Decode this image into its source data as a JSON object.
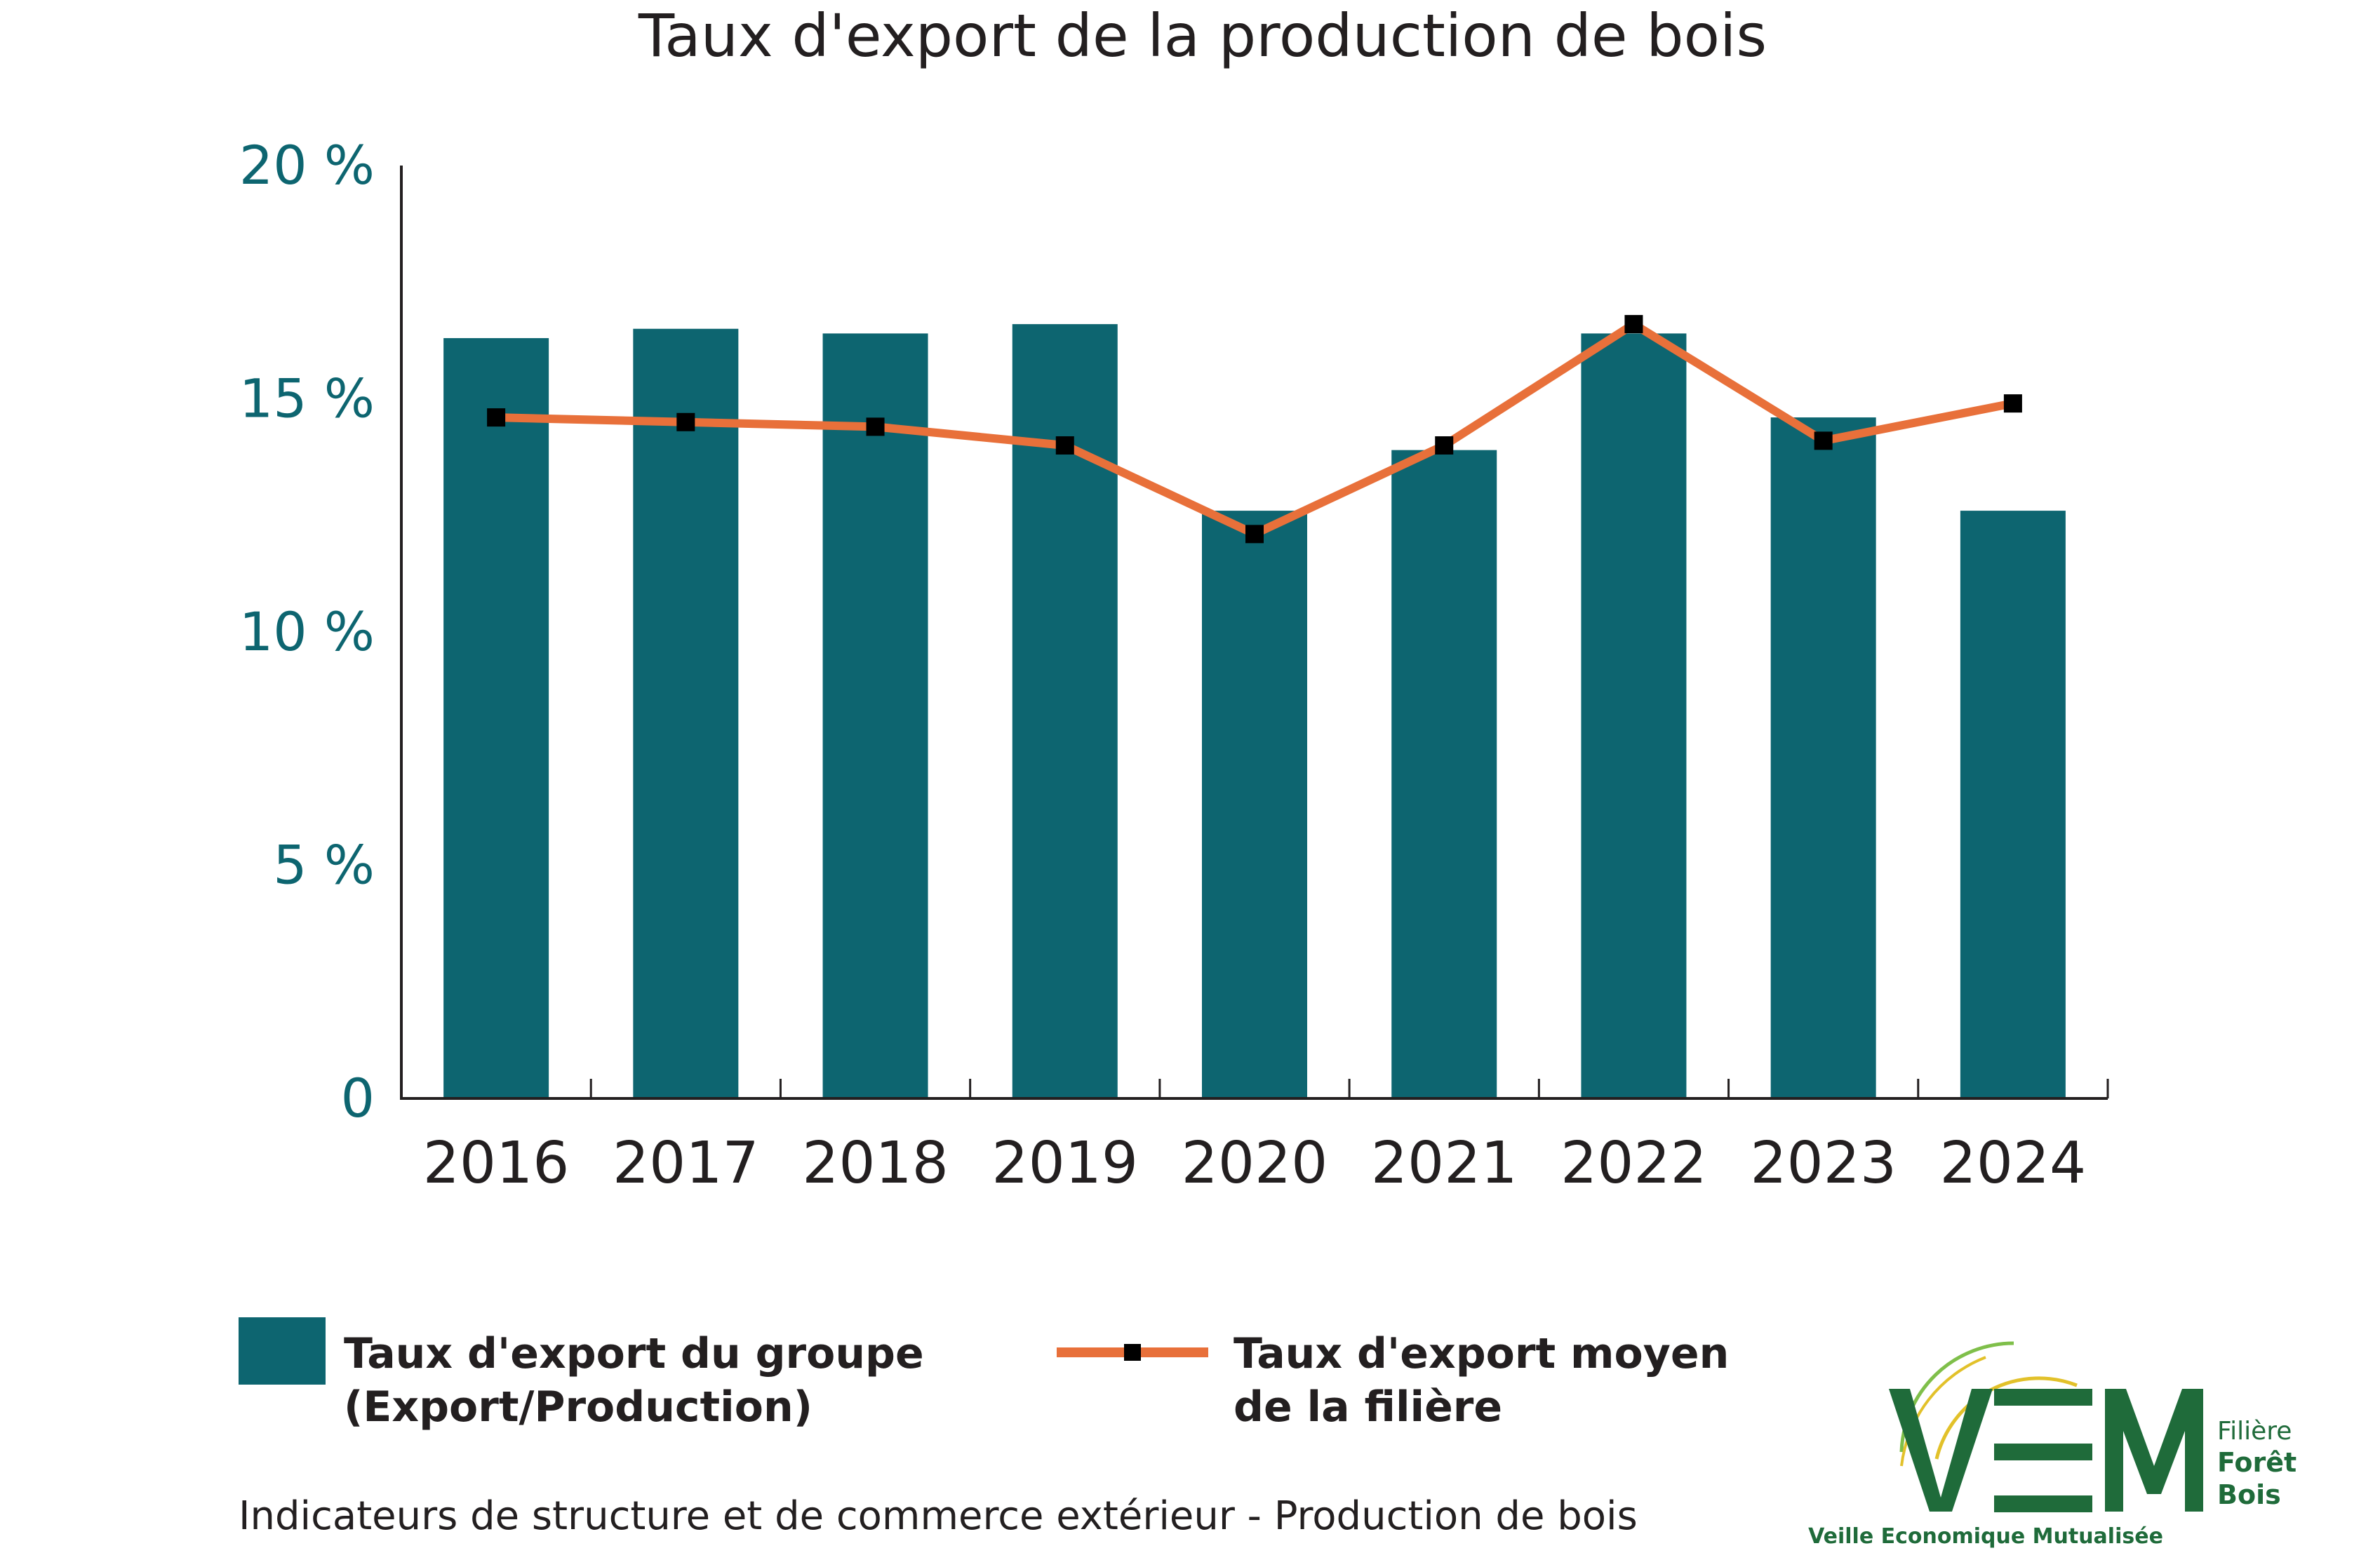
{
  "chart_data": {
    "type": "bar",
    "title": "Taux d'export de la production de bois",
    "categories": [
      "2016",
      "2017",
      "2018",
      "2019",
      "2020",
      "2021",
      "2022",
      "2023",
      "2024"
    ],
    "series": [
      {
        "name": "Taux d'export du groupe (Export/Production)",
        "name_lines": [
          "Taux d'export du groupe",
          "(Export/Production)"
        ],
        "type": "bar",
        "color": "#0d6570",
        "values": [
          16.3,
          16.5,
          16.4,
          16.6,
          12.6,
          13.9,
          16.4,
          14.6,
          12.6
        ]
      },
      {
        "name": "Taux d'export moyen de la filière",
        "name_lines": [
          "Taux d'export moyen",
          "de la filière"
        ],
        "type": "line",
        "color": "#e8703a",
        "marker_color": "#000000",
        "values": [
          14.6,
          14.5,
          14.4,
          14.0,
          12.1,
          14.0,
          16.6,
          14.1,
          14.9
        ]
      }
    ],
    "ylim": [
      0,
      20
    ],
    "yticks": [
      {
        "value": 0,
        "label": "0"
      },
      {
        "value": 5,
        "label": "5 %"
      },
      {
        "value": 10,
        "label": "10 %"
      },
      {
        "value": 15,
        "label": "15 %"
      },
      {
        "value": 20,
        "label": "20 %"
      }
    ],
    "grid": false,
    "legend": "bottom"
  },
  "source_note": "Indicateurs de structure et de commerce extérieur - Production de bois",
  "logo": {
    "mark": "VEM",
    "lines": [
      "Filière",
      "Forêt",
      "Bois"
    ],
    "tagline": "Veille Economique Mutualisée",
    "color": "#1f6b3a",
    "accent": "#e2c12a"
  }
}
